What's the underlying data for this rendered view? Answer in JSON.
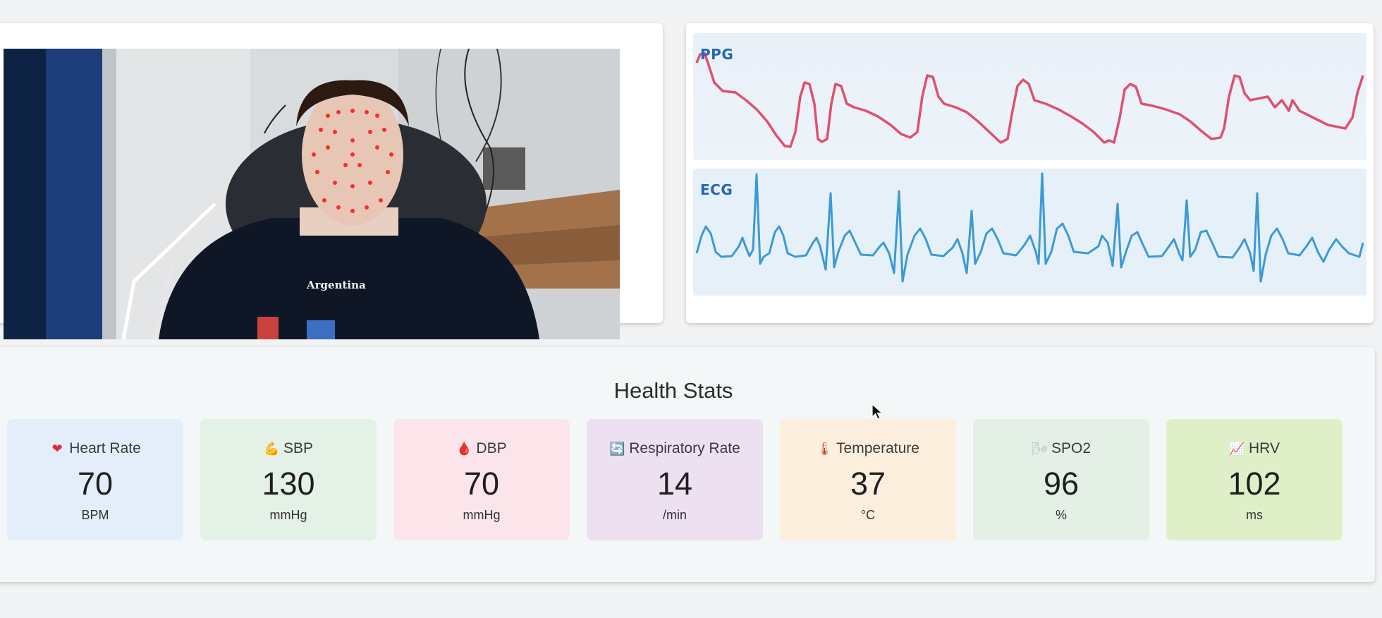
{
  "signals": {
    "ppg_label": "PPG",
    "ecg_label": "ECG",
    "ppg_color": "#e0506e",
    "ecg_color": "#3b9ad6"
  },
  "video": {
    "shirt_text": "Argentina"
  },
  "health_stats": {
    "title": "Health Stats",
    "stats": [
      {
        "icon": "heart-icon",
        "glyph": "❤",
        "label": "Heart Rate",
        "value": "70",
        "unit": "BPM",
        "bg": "#e3eefa"
      },
      {
        "icon": "flexed-arm-icon",
        "glyph": "💪",
        "label": "SBP",
        "value": "130",
        "unit": "mmHg",
        "bg": "#e4f1e6"
      },
      {
        "icon": "blood-drop-icon",
        "glyph": "🩸",
        "label": "DBP",
        "value": "70",
        "unit": "mmHg",
        "bg": "#fbe5ea"
      },
      {
        "icon": "cycle-arrows-icon",
        "glyph": "🔄",
        "label": "Respiratory Rate",
        "value": "14",
        "unit": "/min",
        "bg": "#ede0f1"
      },
      {
        "icon": "thermometer-icon",
        "glyph": "🌡",
        "label": "Temperature",
        "value": "37",
        "unit": "°C",
        "bg": "#fcefdd"
      },
      {
        "icon": "wind-icon",
        "glyph": "🌬",
        "label": "SPO2",
        "value": "96",
        "unit": "%",
        "bg": "#e4f0e6"
      },
      {
        "icon": "chart-increasing-icon",
        "glyph": "📈",
        "label": "HRV",
        "value": "102",
        "unit": "ms",
        "bg": "#dff0c9"
      }
    ]
  }
}
